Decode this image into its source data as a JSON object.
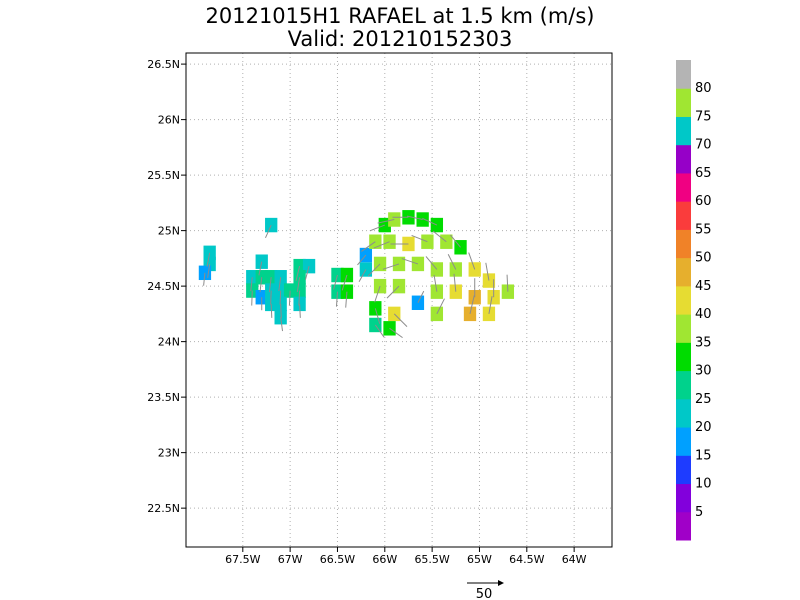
{
  "title_line1": "20121015H1 RAFAEL at 1.5 km (m/s)",
  "title_line2": "Valid: 201210152303",
  "chart_data": {
    "type": "heatmap",
    "title": "20121015H1 RAFAEL at 1.5 km (m/s)",
    "subtitle": "Valid: 201210152303",
    "xlabel": "",
    "ylabel": "",
    "xlim": [
      -68.1,
      -63.6
    ],
    "ylim": [
      22.15,
      26.6
    ],
    "grid": true,
    "x_ticks": [
      {
        "value": -67.5,
        "label": "67.5W"
      },
      {
        "value": -67.0,
        "label": "67W"
      },
      {
        "value": -66.5,
        "label": "66.5W"
      },
      {
        "value": -66.0,
        "label": "66W"
      },
      {
        "value": -65.5,
        "label": "65.5W"
      },
      {
        "value": -65.0,
        "label": "65W"
      },
      {
        "value": -64.5,
        "label": "64.5W"
      },
      {
        "value": -64.0,
        "label": "64W"
      }
    ],
    "y_ticks": [
      {
        "value": 22.5,
        "label": "22.5N"
      },
      {
        "value": 23.0,
        "label": "23N"
      },
      {
        "value": 23.5,
        "label": "23.5N"
      },
      {
        "value": 24.0,
        "label": "24N"
      },
      {
        "value": 24.5,
        "label": "24.5N"
      },
      {
        "value": 25.0,
        "label": "25N"
      },
      {
        "value": 25.5,
        "label": "25.5N"
      },
      {
        "value": 26.0,
        "label": "26N"
      },
      {
        "value": 26.5,
        "label": "26.5N"
      }
    ],
    "colorbar": {
      "labels": [
        "5",
        "10",
        "15",
        "20",
        "25",
        "30",
        "35",
        "40",
        "45",
        "50",
        "55",
        "60",
        "65",
        "70",
        "75",
        "80"
      ],
      "colors": [
        "#a000c8",
        "#8200dc",
        "#1e3cff",
        "#00a0ff",
        "#00c8c8",
        "#00d28c",
        "#00dc00",
        "#a0e632",
        "#e6dc32",
        "#e6af2d",
        "#f08228",
        "#fa3c3c",
        "#f00082",
        "#9600c8",
        "#00c8c8",
        "#a0e632",
        "#b4b4b4"
      ]
    },
    "reference_vector": {
      "label": "50",
      "value": 50
    },
    "wind_cells": [
      {
        "lon": -67.85,
        "lat": 24.8,
        "speed": 20
      },
      {
        "lon": -67.85,
        "lat": 24.7,
        "speed": 20
      },
      {
        "lon": -67.9,
        "lat": 24.62,
        "speed": 15
      },
      {
        "lon": -67.2,
        "lat": 25.05,
        "speed": 20
      },
      {
        "lon": -67.3,
        "lat": 24.72,
        "speed": 20
      },
      {
        "lon": -67.4,
        "lat": 24.58,
        "speed": 20
      },
      {
        "lon": -67.3,
        "lat": 24.58,
        "speed": 25
      },
      {
        "lon": -67.2,
        "lat": 24.58,
        "speed": 25
      },
      {
        "lon": -67.1,
        "lat": 24.58,
        "speed": 20
      },
      {
        "lon": -66.9,
        "lat": 24.68,
        "speed": 25
      },
      {
        "lon": -66.8,
        "lat": 24.68,
        "speed": 20
      },
      {
        "lon": -66.9,
        "lat": 24.58,
        "speed": 25
      },
      {
        "lon": -67.4,
        "lat": 24.46,
        "speed": 25
      },
      {
        "lon": -67.3,
        "lat": 24.4,
        "speed": 15
      },
      {
        "lon": -67.2,
        "lat": 24.46,
        "speed": 20
      },
      {
        "lon": -67.1,
        "lat": 24.46,
        "speed": 20
      },
      {
        "lon": -67.0,
        "lat": 24.46,
        "speed": 25
      },
      {
        "lon": -66.9,
        "lat": 24.46,
        "speed": 25
      },
      {
        "lon": -67.2,
        "lat": 24.34,
        "speed": 20
      },
      {
        "lon": -67.1,
        "lat": 24.34,
        "speed": 20
      },
      {
        "lon": -66.9,
        "lat": 24.34,
        "speed": 20
      },
      {
        "lon": -67.1,
        "lat": 24.22,
        "speed": 20
      },
      {
        "lon": -66.5,
        "lat": 24.6,
        "speed": 25
      },
      {
        "lon": -66.4,
        "lat": 24.6,
        "speed": 30
      },
      {
        "lon": -66.5,
        "lat": 24.45,
        "speed": 25
      },
      {
        "lon": -66.4,
        "lat": 24.45,
        "speed": 30
      },
      {
        "lon": -66.2,
        "lat": 24.65,
        "speed": 20
      },
      {
        "lon": -66.2,
        "lat": 24.78,
        "speed": 15
      },
      {
        "lon": -66.0,
        "lat": 25.05,
        "speed": 30
      },
      {
        "lon": -65.9,
        "lat": 25.1,
        "speed": 35
      },
      {
        "lon": -65.75,
        "lat": 25.12,
        "speed": 30
      },
      {
        "lon": -65.6,
        "lat": 25.1,
        "speed": 30
      },
      {
        "lon": -65.45,
        "lat": 25.05,
        "speed": 30
      },
      {
        "lon": -66.1,
        "lat": 24.9,
        "speed": 35
      },
      {
        "lon": -65.95,
        "lat": 24.9,
        "speed": 35
      },
      {
        "lon": -65.75,
        "lat": 24.88,
        "speed": 40
      },
      {
        "lon": -65.55,
        "lat": 24.9,
        "speed": 35
      },
      {
        "lon": -65.35,
        "lat": 24.9,
        "speed": 35
      },
      {
        "lon": -65.2,
        "lat": 24.85,
        "speed": 30
      },
      {
        "lon": -66.05,
        "lat": 24.7,
        "speed": 35
      },
      {
        "lon": -65.85,
        "lat": 24.7,
        "speed": 35
      },
      {
        "lon": -65.65,
        "lat": 24.7,
        "speed": 35
      },
      {
        "lon": -65.45,
        "lat": 24.65,
        "speed": 35
      },
      {
        "lon": -65.25,
        "lat": 24.65,
        "speed": 35
      },
      {
        "lon": -65.05,
        "lat": 24.65,
        "speed": 40
      },
      {
        "lon": -64.9,
        "lat": 24.55,
        "speed": 40
      },
      {
        "lon": -66.05,
        "lat": 24.5,
        "speed": 35
      },
      {
        "lon": -65.85,
        "lat": 24.5,
        "speed": 35
      },
      {
        "lon": -65.65,
        "lat": 24.35,
        "speed": 15
      },
      {
        "lon": -65.45,
        "lat": 24.45,
        "speed": 35
      },
      {
        "lon": -65.25,
        "lat": 24.45,
        "speed": 40
      },
      {
        "lon": -65.05,
        "lat": 24.4,
        "speed": 45
      },
      {
        "lon": -64.85,
        "lat": 24.4,
        "speed": 40
      },
      {
        "lon": -64.7,
        "lat": 24.45,
        "speed": 35
      },
      {
        "lon": -66.1,
        "lat": 24.3,
        "speed": 30
      },
      {
        "lon": -65.9,
        "lat": 24.25,
        "speed": 40
      },
      {
        "lon": -65.45,
        "lat": 24.25,
        "speed": 35
      },
      {
        "lon": -65.1,
        "lat": 24.25,
        "speed": 45
      },
      {
        "lon": -64.9,
        "lat": 24.25,
        "speed": 40
      },
      {
        "lon": -66.1,
        "lat": 24.15,
        "speed": 25
      },
      {
        "lon": -65.95,
        "lat": 24.12,
        "speed": 30
      }
    ]
  }
}
